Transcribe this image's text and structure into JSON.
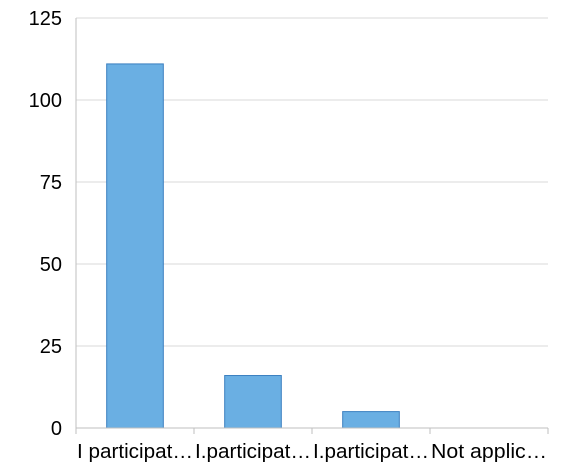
{
  "chart_data": {
    "type": "bar",
    "categories": [
      "I participat…",
      "I.participat…",
      "I.participat…",
      "Not applic…"
    ],
    "values": [
      111,
      16,
      5,
      0
    ],
    "title": "",
    "xlabel": "",
    "ylabel": "",
    "ylim": [
      0,
      125
    ],
    "yticks": [
      0,
      25,
      50,
      75,
      100,
      125
    ],
    "ytick_labels": [
      "0",
      "25",
      "50",
      "75",
      "100",
      "125"
    ],
    "grid": true,
    "legend": "none",
    "colors": {
      "bar_fill": "#6aafe3",
      "bar_stroke": "#3a7fc0",
      "grid": "#d9d9d9",
      "axis": "#bfbfbf"
    }
  }
}
